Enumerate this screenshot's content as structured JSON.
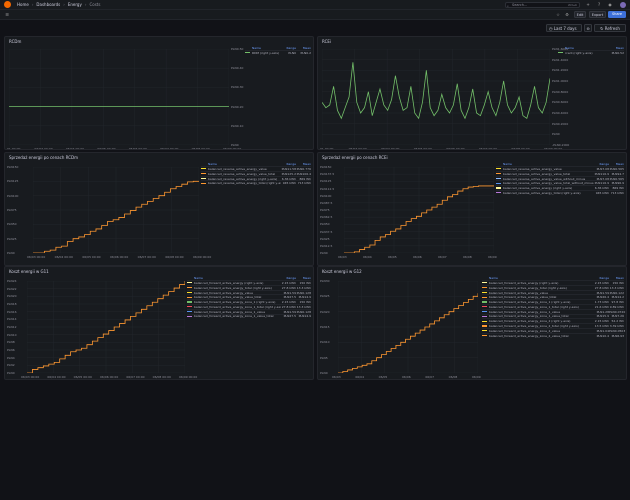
{
  "breadcrumb": [
    "Home",
    "Dashboards",
    "Energy",
    "Costs"
  ],
  "search": {
    "placeholder": "Search...",
    "shortcut": "ctrl+k"
  },
  "toolbar": {
    "edit": "Edit",
    "export": "Export",
    "share": "Share"
  },
  "controls": {
    "time_range": "Last 7 days",
    "refresh": "Refresh"
  },
  "colors": {
    "green": "#73bf69",
    "yellow": "#fade2a",
    "orange": "#ff9830",
    "lightyellow": "#fff899",
    "red": "#f2495c",
    "blue": "#5794f2",
    "purple": "#b877d9",
    "teal": "#8ab8ff"
  },
  "panels": [
    {
      "title": "RCDm",
      "legend_headers": [
        "Name",
        "Range",
        "Mean"
      ],
      "legend": [
        {
          "name": "RDM (right y-axis)",
          "v1": "PLN0",
          "v2": "PLN0.2",
          "color": "#73bf69"
        }
      ],
      "y_ticks": [
        "PLN0.50",
        "PLN0.40",
        "PLN0.30",
        "PLN0.20",
        "PLN0.10",
        "PLN0"
      ],
      "x_ticks": [
        "01 00:00",
        "06/03 00:00",
        "06/04 00:00",
        "06/05 00:00",
        "06/06 00:00",
        "06/07 00:00",
        "06/08 00:00",
        "06/09 00:00"
      ]
    },
    {
      "title": "RCEi",
      "legend_headers": [
        "Name",
        "Mean"
      ],
      "legend": [
        {
          "name": "rcedi (right y-axis)",
          "v1": "",
          "v2": "PLN0.52",
          "color": "#73bf69"
        }
      ],
      "y_ticks": [
        "PLN1.6000",
        "PLN1.4000",
        "PLN1.2000",
        "PLN1.0000",
        "PLN0.8000",
        "PLN0.6000",
        "PLN0.4000",
        "PLN0.2000",
        "PLN0",
        "-PLN0.2000"
      ],
      "x_ticks": [
        "01 00:00",
        "06/03 00:00",
        "06/04 00:00",
        "06/05 00:00",
        "06/06 00:00",
        "06/07 00:00",
        "06/08 00:00",
        "06/09 00:00"
      ]
    },
    {
      "title": "Sprzedaż energii po cenach RCDm",
      "legend_headers": [
        "Name",
        "Range",
        "Mean"
      ],
      "legend": [
        {
          "name": "balanced_reverse_active_energy_value",
          "v1": "PLN11.58",
          "v2": "PLN0.776",
          "color": "#fade2a"
        },
        {
          "name": "balanced_reverse_active_energy_value_total",
          "v1": "PLN125.2",
          "v2": "PLN106.4",
          "color": "#ff9830"
        },
        {
          "name": "balanced_reverse_active_energy (right y-axis)",
          "v1": "6.36 kWh",
          "v2": "869 Wh",
          "color": "#fff899"
        },
        {
          "name": "balanced_reverse_active_energy_total (right y-axis)",
          "v1": "945 kWh",
          "v2": "713 kWh",
          "color": "#ff9830"
        }
      ],
      "y_ticks": [
        "PLN150",
        "PLN125",
        "PLN100",
        "PLN75",
        "PLN50",
        "PLN25",
        "PLN0"
      ],
      "x_ticks": [
        "06/03 00:00",
        "06/04 00:00",
        "06/05 00:00",
        "06/06 00:00",
        "06/07 00:00",
        "06/08 00:00",
        "06/09 00:00"
      ]
    },
    {
      "title": "Sprzedaż energii po cenach RCEi",
      "legend_headers": [
        "Name",
        "Range",
        "Mean"
      ],
      "legend": [
        {
          "name": "balanced_reverse_active_energy_value",
          "v1": "PLN7.08",
          "v2": "PLN0.565",
          "color": "#fade2a"
        },
        {
          "name": "balanced_reverse_active_energy_value_total",
          "v1": "PLN116.9",
          "v2": "PLN94.7",
          "color": "#ff9830"
        },
        {
          "name": "balanced_reverse_active_energy_value_without_minus",
          "v1": "PLN7.08",
          "v2": "PLN0.565",
          "color": "#8ab8ff"
        },
        {
          "name": "balanced_reverse_active_energy_value_total_without_minus",
          "v1": "PLN116.9",
          "v2": "PLN96.9",
          "color": "#5794f2"
        },
        {
          "name": "balanced_reverse_active_energy (right y-axis)",
          "v1": "6.36 kWh",
          "v2": "869 Wh",
          "color": "#fff899"
        },
        {
          "name": "balanced_reverse_active_energy_total (right y-axis)",
          "v1": "945 kWh",
          "v2": "713 kWh",
          "color": "#b877d9"
        }
      ],
      "y_ticks": [
        "PLN150",
        "PLN137.5",
        "PLN125",
        "PLN112.5",
        "PLN100",
        "PLN87.5",
        "PLN75",
        "PLN62.5",
        "PLN50",
        "PLN37.5",
        "PLN25",
        "PLN12.5",
        "PLN0"
      ],
      "x_ticks": [
        "06/03",
        "06/04",
        "06/05",
        "06/06",
        "06/07",
        "06/08",
        "06/09"
      ]
    },
    {
      "title": "Koszt energii w G11",
      "legend_headers": [
        "Name",
        "Range",
        "Mean"
      ],
      "legend": [
        {
          "name": "balanced_forward_active_energy (right y-axis)",
          "v1": "2.15 kWh",
          "v2": "150 Wh",
          "color": "#fff899"
        },
        {
          "name": "balanced_forward_active_energy_total (right y-axis)",
          "v1": "27.8 kWh",
          "v2": "13.3 kWh",
          "color": "#ff9830"
        },
        {
          "name": "balanced_forward_active_energy_value",
          "v1": "PLN1.59",
          "v2": "PLN0.128",
          "color": "#fade2a"
        },
        {
          "name": "balanced_forward_active_energy_value_total",
          "v1": "PLN27.5",
          "v2": "PLN14.9",
          "color": "#ff9830"
        },
        {
          "name": "balanced_forward_active_energy_zone_1 (right y-axis)",
          "v1": "2.15 kWh",
          "v2": "150 Wh",
          "color": "#73bf69"
        },
        {
          "name": "balanced_forward_active_energy_zone_1_total (right y-axis)",
          "v1": "27.8 kWh",
          "v2": "13.3 kWh",
          "color": "#f2495c"
        },
        {
          "name": "balanced_forward_active_energy_zone_1_value",
          "v1": "PLN1.59",
          "v2": "PLN0.128",
          "color": "#5794f2"
        },
        {
          "name": "balanced_forward_active_energy_zone_1_value_total",
          "v1": "PLN27.5",
          "v2": "PLN14.9",
          "color": "#b877d9"
        }
      ],
      "y_ticks": [
        "PLN24",
        "PLN22",
        "PLN20",
        "PLN18",
        "PLN16",
        "PLN14",
        "PLN12",
        "PLN10",
        "PLN8",
        "PLN6",
        "PLN4",
        "PLN2",
        "PLN0"
      ],
      "x_ticks": [
        "06/03 00:00",
        "06/04 00:00",
        "06/05 00:00",
        "06/06 00:00",
        "06/07 00:00",
        "06/08 00:00",
        "06/09 00:00"
      ]
    },
    {
      "title": "Koszt energii w G12",
      "legend_headers": [
        "Name",
        "Range",
        "Mean"
      ],
      "legend": [
        {
          "name": "balanced_forward_active_energy (right y-axis)",
          "v1": "2.15 kWh",
          "v2": "150 Wh",
          "color": "#fff899"
        },
        {
          "name": "balanced_forward_active_energy_total (right y-axis)",
          "v1": "27.8 kWh",
          "v2": "13.3 kWh",
          "color": "#ff9830"
        },
        {
          "name": "balanced_forward_active_energy_value",
          "v1": "PLN1.59",
          "v2": "PLN0.122",
          "color": "#fade2a"
        },
        {
          "name": "balanced_forward_active_energy_value_total",
          "v1": "PLN26.4",
          "v2": "PLN14.2",
          "color": "#ff9830"
        },
        {
          "name": "balanced_forward_active_energy_zone_1 (right y-axis)",
          "v1": "1.73 kWh",
          "v2": "97.8 Wh",
          "color": "#73bf69"
        },
        {
          "name": "balanced_forward_active_energy_zone_1_total (right y-axis)",
          "v1": "21.6 kWh",
          "v2": "9.89 kWh",
          "color": "#f2495c"
        },
        {
          "name": "balanced_forward_active_energy_zone_1_value",
          "v1": "PLN1.28",
          "v2": "PLN0.0720",
          "color": "#5794f2"
        },
        {
          "name": "balanced_forward_active_energy_zone_1_value_total",
          "v1": "PLN15.9",
          "v2": "PLN7.26",
          "color": "#b877d9"
        },
        {
          "name": "balanced_forward_active_energy_zone_2 (right y-axis)",
          "v1": "2.15 kWh",
          "v2": "52.2 Wh",
          "color": "#fade2a"
        },
        {
          "name": "balanced_forward_active_energy_zone_2_total (right y-axis)",
          "v1": "13.5 kWh",
          "v2": "3.39 kWh",
          "color": "#ff9830"
        },
        {
          "name": "balanced_forward_active_energy_zone_2_value",
          "v1": "PLN1.04",
          "v2": "PLN0.0503",
          "color": "#fade2a"
        },
        {
          "name": "balanced_forward_active_energy_zone_2_value_total",
          "v1": "PLN10.4",
          "v2": "PLN6.93",
          "color": "#ff9830"
        }
      ],
      "y_ticks": [
        "PLN30",
        "PLN25",
        "PLN20",
        "PLN15",
        "PLN10",
        "PLN5",
        "PLN0"
      ],
      "x_ticks": [
        "06/03",
        "06/04",
        "06/05",
        "06/06",
        "06/07",
        "06/08",
        "06/09"
      ]
    }
  ],
  "chart_data": [
    {
      "type": "line",
      "title": "RCDm",
      "series": [
        {
          "name": "RDM (right y-axis)",
          "values": [
            0.2,
            0.2,
            0.2,
            0.2,
            0.2,
            0.2,
            0.2,
            0.2,
            0.2,
            0.2
          ]
        }
      ],
      "ylim": [
        0,
        0.5
      ]
    },
    {
      "type": "line",
      "title": "RCEi",
      "series": [
        {
          "name": "rcedi (right y-axis)",
          "values": [
            0.6,
            0.5,
            0.55,
            0.9,
            0.45,
            0.3,
            0.5,
            0.7,
            1.35,
            0.6,
            0.4,
            0.5,
            0.8,
            0.35,
            0.6,
            0.85,
            0.55,
            0.45,
            0.65,
            1.1,
            0.7,
            0.45,
            0.5,
            0.9,
            0.4,
            0.3,
            0.6,
            1.2,
            0.5,
            0.35,
            0.45,
            0.75,
            0.5,
            0.4,
            0.55,
            0.95,
            0.45,
            0.3,
            0.5,
            0.85,
            0.4,
            0.35,
            0.55,
            0.8,
            0.5,
            0.35,
            0.6,
            1.0,
            0.55,
            0.4,
            0.5,
            0.7,
            0.35,
            0.3,
            0.55,
            0.9,
            0.5,
            0.4,
            0.6,
            1.05
          ]
        }
      ],
      "ylim": [
        -0.2,
        1.6
      ]
    },
    {
      "type": "line",
      "title": "Sprzedaż energii po cenach RCDm",
      "series": [
        {
          "name": "balanced_reverse_active_energy_value_total",
          "values": [
            0,
            0,
            3,
            5,
            10,
            12,
            20,
            25,
            28,
            32,
            38,
            42,
            48,
            55,
            58,
            62,
            68,
            74,
            80,
            85,
            90,
            95,
            100,
            106,
            112,
            116,
            120,
            124,
            125,
            125
          ]
        }
      ],
      "ylim": [
        0,
        150
      ]
    },
    {
      "type": "line",
      "title": "Sprzedaż energii po cenach RCEi",
      "series": [
        {
          "name": "balanced_reverse_active_energy_value_total",
          "values": [
            0,
            0,
            2,
            6,
            10,
            14,
            22,
            28,
            32,
            38,
            42,
            48,
            55,
            60,
            64,
            70,
            75,
            80,
            85,
            92,
            98,
            102,
            108,
            112,
            115,
            116,
            117,
            117,
            117,
            117
          ]
        }
      ],
      "ylim": [
        0,
        150
      ]
    },
    {
      "type": "line",
      "title": "Koszt energii w G11",
      "series": [
        {
          "name": "balanced_forward_active_energy_value_total",
          "values": [
            0,
            1,
            1.5,
            2,
            2.5,
            3,
            4,
            5,
            6,
            6.5,
            7,
            8,
            9,
            10,
            11,
            12,
            13,
            14,
            15,
            16,
            17,
            18,
            19,
            20,
            21,
            22,
            23,
            24,
            25,
            26
          ]
        }
      ],
      "ylim": [
        0,
        26
      ]
    },
    {
      "type": "line",
      "title": "Koszt energii w G12",
      "series": [
        {
          "name": "balanced_forward_active_energy_value_total",
          "values": [
            0,
            0.5,
            1,
            1.5,
            2,
            2.5,
            3,
            4,
            5,
            6,
            7,
            8,
            9,
            10,
            11,
            12,
            13,
            14,
            15,
            16,
            17,
            18,
            19,
            20,
            21,
            22,
            23,
            24,
            25,
            26
          ]
        }
      ],
      "ylim": [
        0,
        30
      ]
    }
  ]
}
